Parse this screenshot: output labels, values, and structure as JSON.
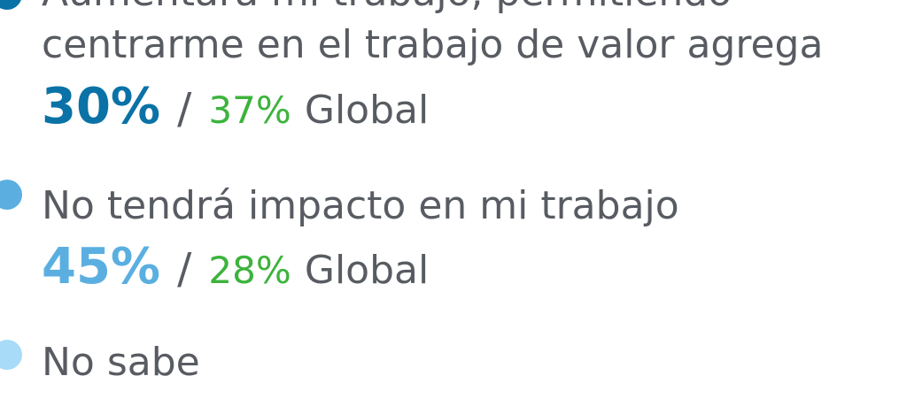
{
  "items": [
    {
      "label_lines": [
        "Aumentará mi trabajo, permitiendo",
        "centrarme en el trabajo de valor agrega"
      ],
      "percent": "30%",
      "separator": "/",
      "global": "37%",
      "global_label": "Global"
    },
    {
      "label_lines": [
        "No tendrá impacto en mi trabajo"
      ],
      "percent": "45%",
      "separator": "/",
      "global": "28%",
      "global_label": "Global"
    },
    {
      "label_lines": [
        "No sabe"
      ]
    }
  ]
}
